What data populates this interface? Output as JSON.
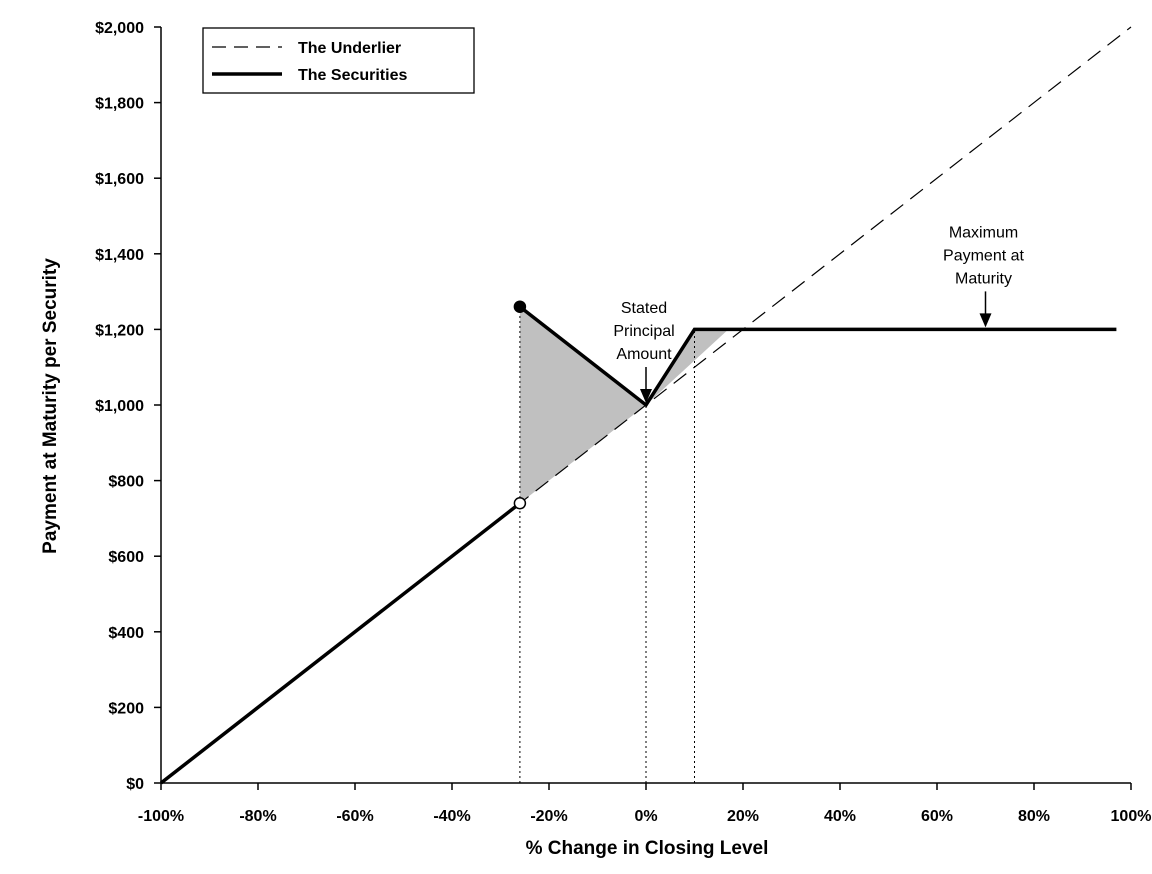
{
  "chart_data": {
    "type": "line",
    "title": "",
    "xlabel": "% Change in Closing Level",
    "ylabel": "Payment at Maturity per Security",
    "xlim": [
      -100,
      100
    ],
    "ylim": [
      0,
      2000
    ],
    "x_ticks": [
      -100,
      -80,
      -60,
      -40,
      -20,
      0,
      20,
      40,
      60,
      80,
      100
    ],
    "x_tick_labels": [
      "-100%",
      "-80%",
      "-60%",
      "-40%",
      "-20%",
      "0%",
      "20%",
      "40%",
      "60%",
      "80%",
      "100%"
    ],
    "y_ticks": [
      0,
      200,
      400,
      600,
      800,
      1000,
      1200,
      1400,
      1600,
      1800,
      2000
    ],
    "y_tick_labels": [
      "$0",
      "$200",
      "$400",
      "$600",
      "$800",
      "$1,000",
      "$1,200",
      "$1,400",
      "$1,600",
      "$1,800",
      "$2,000"
    ],
    "grid": false,
    "legend": {
      "position": "top-left",
      "entries": [
        {
          "label": "The Underlier",
          "style": "dashed"
        },
        {
          "label": "The Securities",
          "style": "solid"
        }
      ]
    },
    "series": [
      {
        "name": "The Underlier",
        "style": "dashed",
        "points": [
          [
            -100,
            0
          ],
          [
            100,
            2000
          ]
        ]
      },
      {
        "name": "The Securities",
        "style": "solid",
        "segments": [
          [
            [
              -100,
              0
            ],
            [
              -26,
              740
            ]
          ],
          [
            [
              -26,
              1260
            ],
            [
              0,
              1000
            ],
            [
              10,
              1200
            ],
            [
              97,
              1200
            ]
          ]
        ]
      }
    ],
    "markers": [
      {
        "x": -26,
        "y": 1260,
        "fill": "filled"
      },
      {
        "x": -26,
        "y": 740,
        "fill": "open"
      }
    ],
    "shaded_regions": [
      {
        "points": [
          [
            -26,
            1260
          ],
          [
            0,
            1000
          ],
          [
            -26,
            740
          ]
        ],
        "color": "#c0c0c0"
      },
      {
        "points": [
          [
            0,
            1000
          ],
          [
            10,
            1200
          ],
          [
            17,
            1200
          ]
        ],
        "color": "#c0c0c0"
      }
    ],
    "reference_lines": [
      {
        "x": -26,
        "y_from": 0,
        "y_to": 1260,
        "style": "dotted"
      },
      {
        "x": 0,
        "y_from": 0,
        "y_to": 1000,
        "style": "dotted"
      },
      {
        "x": 10,
        "y_from": 0,
        "y_to": 1200,
        "style": "dotted"
      }
    ],
    "annotations": [
      {
        "lines": [
          "Stated",
          "Principal",
          "Amount"
        ],
        "arrow_to": [
          0,
          1000
        ]
      },
      {
        "lines": [
          "Maximum",
          "Payment at",
          "Maturity"
        ],
        "arrow_to": [
          70,
          1200
        ]
      }
    ]
  }
}
